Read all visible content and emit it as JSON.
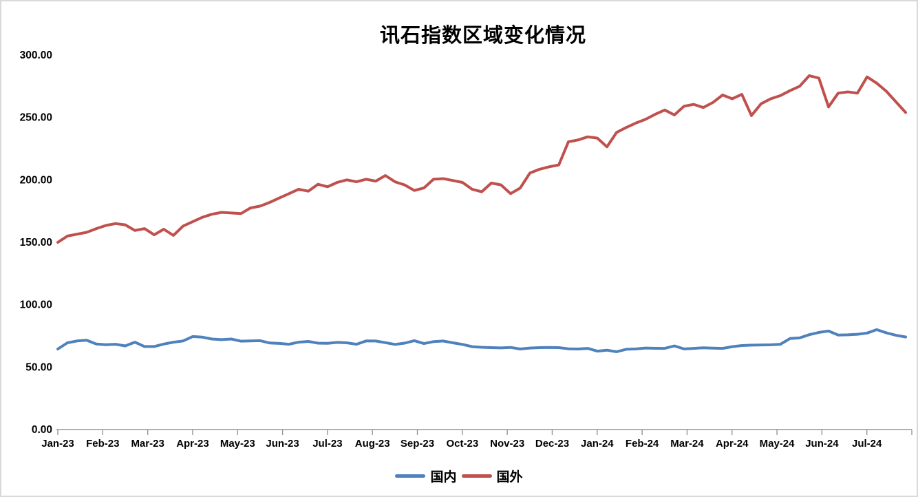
{
  "chart_data": {
    "type": "line",
    "title": "讯石指数区域变化情况",
    "xlabel": "",
    "ylabel": "",
    "ylim": [
      0,
      300
    ],
    "grid": false,
    "legend_position": "bottom",
    "axis_color": "#969696",
    "y_ticks": [
      {
        "label": "0.00",
        "value": 0
      },
      {
        "label": "50.00",
        "value": 50
      },
      {
        "label": "100.00",
        "value": 100
      },
      {
        "label": "150.00",
        "value": 150
      },
      {
        "label": "200.00",
        "value": 200
      },
      {
        "label": "250.00",
        "value": 250
      },
      {
        "label": "300.00",
        "value": 300
      }
    ],
    "categories": [
      "Jan-23",
      "Feb-23",
      "Mar-23",
      "Apr-23",
      "May-23",
      "Jun-23",
      "Jul-23",
      "Aug-23",
      "Sep-23",
      "Oct-23",
      "Nov-23",
      "Dec-23",
      "Jan-24",
      "Feb-24",
      "Mar-24",
      "Apr-24",
      "May-24",
      "Jun-24",
      "Jul-24"
    ],
    "series": [
      {
        "key": "domestic",
        "name": "国内",
        "color": "#4F81BD",
        "values": [
          64.5,
          69.5,
          71.0,
          71.5,
          68.5,
          68.0,
          68.3,
          67.0,
          70.0,
          66.5,
          66.5,
          68.5,
          70.0,
          71.0,
          74.5,
          74.0,
          72.5,
          72.0,
          72.5,
          70.8,
          71.0,
          71.2,
          69.3,
          69.0,
          68.3,
          70.0,
          70.6,
          69.2,
          69.1,
          69.8,
          69.5,
          68.3,
          71.0,
          70.9,
          69.6,
          68.2,
          69.2,
          71.2,
          68.9,
          70.4,
          70.9,
          69.5,
          68.2,
          66.4,
          65.9,
          65.6,
          65.4,
          65.8,
          64.5,
          65.3,
          65.6,
          65.8,
          65.6,
          64.7,
          64.5,
          65.0,
          62.8,
          63.6,
          62.3,
          64.3,
          64.6,
          65.3,
          65.1,
          65.0,
          67.0,
          64.6,
          65.0,
          65.5,
          65.2,
          65.0,
          66.4,
          67.3,
          67.6,
          67.8,
          67.9,
          68.3,
          72.9,
          73.4,
          76.0,
          77.8,
          78.9,
          75.7,
          75.9,
          76.3,
          77.3,
          80.0,
          77.5,
          75.5,
          74.2
        ]
      },
      {
        "key": "foreign",
        "name": "国外",
        "color": "#C0504D",
        "values": [
          150.0,
          155.0,
          156.5,
          158.0,
          161.0,
          163.5,
          165.0,
          164.0,
          159.5,
          161.0,
          156.0,
          160.5,
          155.5,
          163.0,
          166.5,
          170.0,
          172.5,
          174.0,
          173.5,
          173.0,
          177.5,
          179.0,
          182.0,
          185.5,
          189.0,
          192.5,
          191.0,
          196.5,
          194.5,
          198.0,
          200.0,
          198.5,
          200.5,
          199.0,
          203.5,
          198.5,
          196.0,
          191.5,
          193.5,
          200.5,
          201.0,
          199.5,
          198.0,
          192.5,
          190.5,
          197.5,
          196.0,
          189.0,
          193.5,
          205.5,
          208.5,
          210.5,
          212.0,
          230.5,
          232.0,
          234.5,
          233.5,
          226.5,
          238.0,
          242.0,
          245.5,
          248.5,
          252.5,
          256.0,
          252.0,
          259.0,
          260.5,
          258.0,
          262.0,
          268.0,
          265.0,
          268.5,
          251.5,
          261.0,
          265.0,
          267.5,
          271.5,
          275.0,
          283.5,
          281.5,
          258.5,
          269.5,
          270.5,
          269.5,
          282.5,
          277.5,
          271.0,
          262.5,
          254.0
        ]
      }
    ]
  }
}
